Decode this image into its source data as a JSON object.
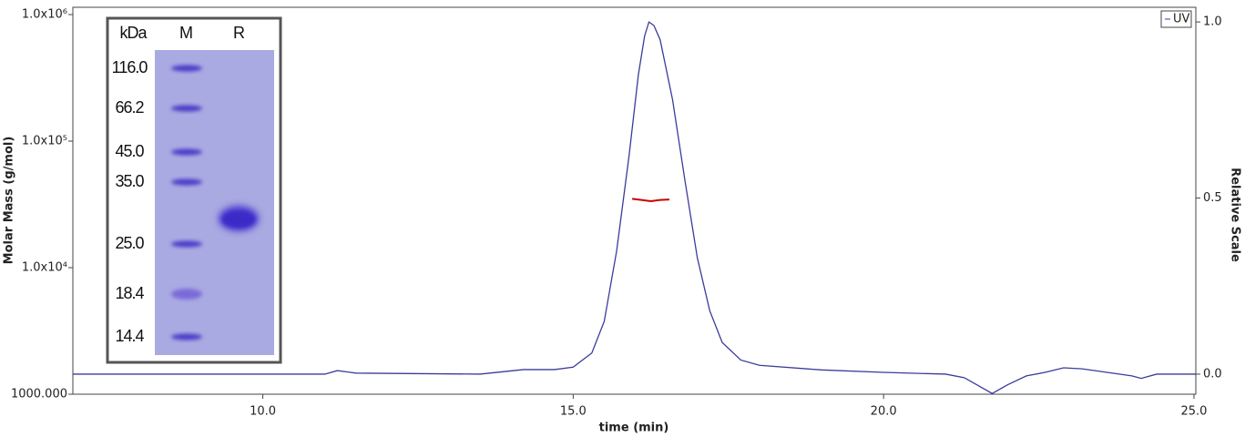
{
  "chart_data": {
    "type": "line",
    "xlabel": "time (min)",
    "ylabel": "Molar Mass (g/mol)",
    "y2label": "Relative Scale",
    "xlim": [
      6.94,
      25.03
    ],
    "xticks": [
      {
        "value": 10,
        "label": "10.0"
      },
      {
        "value": 15,
        "label": "15.0"
      },
      {
        "value": 20,
        "label": "20.0"
      },
      {
        "value": 25,
        "label": "25.0"
      }
    ],
    "ylim": [
      1000,
      1000000
    ],
    "yscale": "log",
    "yticks": [
      {
        "value": 1000,
        "label": "1000.000"
      },
      {
        "value": 10000,
        "label": "1.0x10⁴"
      },
      {
        "value": 100000,
        "label": "1.0x10⁵"
      },
      {
        "value": 1000000,
        "label": "1.0x10⁶"
      }
    ],
    "y2lim": [
      -0.057,
      1.021
    ],
    "y2ticks": [
      {
        "value": 0,
        "label": "0.0"
      },
      {
        "value": 0.5,
        "label": "0.5"
      },
      {
        "value": 1,
        "label": "1.0"
      }
    ],
    "legend": "upper right",
    "series": [
      {
        "name": "UV",
        "color": "#3b3b9c",
        "axis": "y2",
        "x": [
          6.94,
          11.0,
          11.2,
          11.5,
          13.5,
          14.2,
          14.7,
          15.0,
          15.3,
          15.5,
          15.7,
          15.9,
          16.05,
          16.15,
          16.22,
          16.3,
          16.4,
          16.6,
          16.8,
          17.0,
          17.2,
          17.4,
          17.7,
          18.0,
          19.0,
          20.0,
          21.0,
          21.3,
          21.5,
          21.75,
          22.0,
          22.3,
          22.6,
          22.9,
          23.2,
          23.6,
          24.0,
          24.15,
          24.4,
          25.03
        ],
        "values": [
          0.0,
          0.0,
          0.01,
          0.003,
          0.0,
          0.013,
          0.013,
          0.02,
          0.06,
          0.15,
          0.35,
          0.62,
          0.85,
          0.96,
          1.0,
          0.99,
          0.95,
          0.78,
          0.55,
          0.33,
          0.18,
          0.09,
          0.04,
          0.025,
          0.012,
          0.005,
          0.0,
          -0.01,
          -0.03,
          -0.055,
          -0.03,
          -0.005,
          0.005,
          0.018,
          0.015,
          0.005,
          -0.005,
          -0.012,
          0.0,
          0.0
        ]
      },
      {
        "name": "Molar Mass",
        "color": "#cc0000",
        "x": [
          15.95,
          16.1,
          16.25,
          16.4,
          16.55
        ],
        "values": [
          35000,
          34300,
          33500,
          34300,
          34600
        ]
      }
    ],
    "inset": {
      "headers": [
        "kDa",
        "M",
        "R"
      ],
      "markers": [
        "116.0",
        "66.2",
        "45.0",
        "35.0",
        "25.0",
        "18.4",
        "14.4"
      ]
    }
  }
}
